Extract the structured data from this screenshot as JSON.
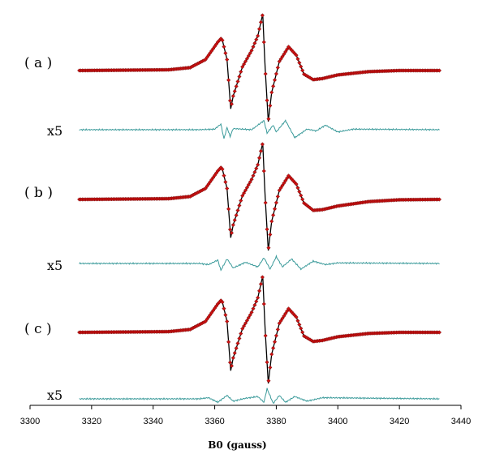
{
  "chart_data": {
    "type": "line",
    "xlabel": "B0 (gauss)",
    "xlim": [
      3300,
      3440
    ],
    "x_ticks": [
      3300,
      3320,
      3340,
      3360,
      3380,
      3400,
      3420,
      3440
    ],
    "x_range": [
      3316,
      3433
    ],
    "grid": false,
    "legend": "none",
    "colors": {
      "spectrum_line": "#000000",
      "simulation_marker": "#cc1111",
      "residual_line": "#3a9a9a"
    },
    "panels": [
      {
        "label": "( a )",
        "residual_label": "x5",
        "spectrum": [
          [
            3316,
            0
          ],
          [
            3345,
            0.02
          ],
          [
            3352,
            0.08
          ],
          [
            3357,
            0.3
          ],
          [
            3361,
            0.78
          ],
          [
            3362.3,
            0.9
          ],
          [
            3364,
            0.3
          ],
          [
            3365.2,
            -1.05
          ],
          [
            3366,
            -0.7
          ],
          [
            3369,
            0.1
          ],
          [
            3372,
            0.55
          ],
          [
            3374,
            0.95
          ],
          [
            3375.6,
            1.55
          ],
          [
            3376.3,
            0.2
          ],
          [
            3377.4,
            -1.4
          ],
          [
            3378.5,
            -0.6
          ],
          [
            3381,
            0.25
          ],
          [
            3384,
            0.65
          ],
          [
            3386.5,
            0.42
          ],
          [
            3389,
            -0.1
          ],
          [
            3392,
            -0.25
          ],
          [
            3395,
            -0.22
          ],
          [
            3400,
            -0.12
          ],
          [
            3410,
            -0.03
          ],
          [
            3420,
            0
          ],
          [
            3433,
            0
          ]
        ],
        "residual": [
          [
            3316,
            0
          ],
          [
            3355,
            0
          ],
          [
            3360,
            0.05
          ],
          [
            3362,
            0.5
          ],
          [
            3363,
            -0.8
          ],
          [
            3364,
            0.2
          ],
          [
            3365,
            -0.6
          ],
          [
            3366,
            0.1
          ],
          [
            3372,
            0
          ],
          [
            3376,
            0.8
          ],
          [
            3377,
            -0.3
          ],
          [
            3379,
            0.4
          ],
          [
            3380,
            -0.2
          ],
          [
            3383,
            0.8
          ],
          [
            3386,
            -0.7
          ],
          [
            3390,
            0.05
          ],
          [
            3393,
            -0.1
          ],
          [
            3396,
            0.4
          ],
          [
            3400,
            -0.2
          ],
          [
            3405,
            0.05
          ],
          [
            3433,
            0
          ]
        ]
      },
      {
        "label": "( b )",
        "residual_label": "x5",
        "spectrum": [
          [
            3316,
            0
          ],
          [
            3345,
            0.02
          ],
          [
            3352,
            0.08
          ],
          [
            3357,
            0.3
          ],
          [
            3361,
            0.78
          ],
          [
            3362.3,
            0.9
          ],
          [
            3364,
            0.3
          ],
          [
            3365.2,
            -1.05
          ],
          [
            3366,
            -0.7
          ],
          [
            3369,
            0.1
          ],
          [
            3372,
            0.55
          ],
          [
            3374,
            0.95
          ],
          [
            3375.6,
            1.55
          ],
          [
            3376.3,
            0.2
          ],
          [
            3377.4,
            -1.4
          ],
          [
            3378.5,
            -0.6
          ],
          [
            3381,
            0.25
          ],
          [
            3384,
            0.65
          ],
          [
            3386.5,
            0.42
          ],
          [
            3389,
            -0.1
          ],
          [
            3392,
            -0.3
          ],
          [
            3395,
            -0.28
          ],
          [
            3400,
            -0.18
          ],
          [
            3410,
            -0.06
          ],
          [
            3420,
            -0.01
          ],
          [
            3433,
            0
          ]
        ],
        "residual": [
          [
            3316,
            0
          ],
          [
            3355,
            0
          ],
          [
            3358,
            -0.1
          ],
          [
            3361,
            0.3
          ],
          [
            3362,
            -0.6
          ],
          [
            3364,
            0.4
          ],
          [
            3366,
            -0.4
          ],
          [
            3370,
            0.1
          ],
          [
            3374,
            -0.3
          ],
          [
            3376,
            0.5
          ],
          [
            3378,
            -0.5
          ],
          [
            3380,
            0.6
          ],
          [
            3382,
            -0.3
          ],
          [
            3385,
            0.4
          ],
          [
            3388,
            -0.5
          ],
          [
            3392,
            0.2
          ],
          [
            3396,
            -0.1
          ],
          [
            3400,
            0.05
          ],
          [
            3433,
            0
          ]
        ]
      },
      {
        "label": "( c )",
        "residual_label": "x5",
        "spectrum": [
          [
            3316,
            0
          ],
          [
            3345,
            0.02
          ],
          [
            3352,
            0.08
          ],
          [
            3357,
            0.3
          ],
          [
            3361,
            0.78
          ],
          [
            3362.3,
            0.9
          ],
          [
            3364,
            0.3
          ],
          [
            3365.2,
            -1.05
          ],
          [
            3366,
            -0.7
          ],
          [
            3369,
            0.1
          ],
          [
            3372,
            0.55
          ],
          [
            3374,
            0.95
          ],
          [
            3375.6,
            1.55
          ],
          [
            3376.3,
            0.2
          ],
          [
            3377.4,
            -1.4
          ],
          [
            3378.5,
            -0.6
          ],
          [
            3381,
            0.25
          ],
          [
            3384,
            0.65
          ],
          [
            3386.5,
            0.42
          ],
          [
            3389,
            -0.1
          ],
          [
            3392,
            -0.25
          ],
          [
            3395,
            -0.22
          ],
          [
            3400,
            -0.12
          ],
          [
            3410,
            -0.03
          ],
          [
            3420,
            0
          ],
          [
            3433,
            0
          ]
        ],
        "residual": [
          [
            3316,
            0
          ],
          [
            3355,
            0
          ],
          [
            3358,
            0.1
          ],
          [
            3361,
            -0.3
          ],
          [
            3364,
            0.3
          ],
          [
            3366,
            -0.2
          ],
          [
            3370,
            0.05
          ],
          [
            3374,
            0.2
          ],
          [
            3376,
            -0.3
          ],
          [
            3377,
            0.9
          ],
          [
            3379,
            -0.4
          ],
          [
            3381,
            0.3
          ],
          [
            3383,
            -0.3
          ],
          [
            3386,
            0.2
          ],
          [
            3390,
            -0.2
          ],
          [
            3395,
            0.1
          ],
          [
            3433,
            0
          ]
        ]
      }
    ]
  }
}
